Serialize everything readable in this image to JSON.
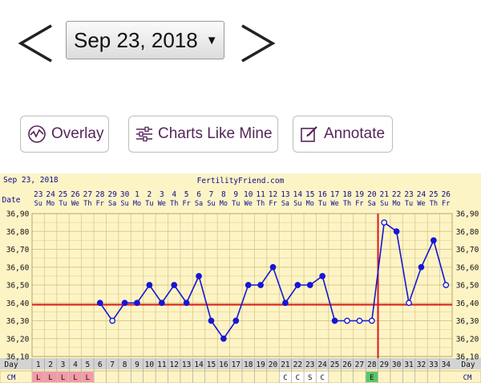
{
  "date_picker": {
    "selected": "Sep 23, 2018"
  },
  "toolbar": {
    "overlay_label": "Overlay",
    "charts_like_mine_label": "Charts Like Mine",
    "annotate_label": "Annotate"
  },
  "icons": {
    "prev": "chevron-left-icon",
    "next": "chevron-right-icon",
    "overlay": "overlay-wave-icon",
    "charts": "sliders-icon",
    "annotate": "edit-icon"
  },
  "colors": {
    "chart_bg": "#fdf4c6",
    "grid": "#d9c98a",
    "coverline": "#d81818",
    "ovulation_line": "#d81818",
    "temp_line": "#1616d6",
    "label_text": "#0a0a8a",
    "period_cell": "#f29aa8",
    "egg_cell": "#5cc46a",
    "row_bg": "#d3d3d3"
  },
  "chart_data": {
    "type": "line",
    "header_date": "Sep 23, 2018",
    "header_site": "FertilityFriend.com",
    "date_row_label": "Date",
    "day_row_label": "Day",
    "cm_row_label": "CM",
    "dates": [
      "23",
      "24",
      "25",
      "26",
      "27",
      "28",
      "29",
      "30",
      "1",
      "2",
      "3",
      "4",
      "5",
      "6",
      "7",
      "8",
      "9",
      "10",
      "11",
      "12",
      "13",
      "14",
      "15",
      "16",
      "17",
      "18",
      "19",
      "20",
      "21",
      "22",
      "23",
      "24",
      "25",
      "26"
    ],
    "weekdays": [
      "Su",
      "Mo",
      "Tu",
      "We",
      "Th",
      "Fr",
      "Sa",
      "Su",
      "Mo",
      "Tu",
      "We",
      "Th",
      "Fr",
      "Sa",
      "Su",
      "Mo",
      "Tu",
      "We",
      "Th",
      "Fr",
      "Sa",
      "Su",
      "Mo",
      "Tu",
      "We",
      "Th",
      "Fr",
      "Sa",
      "Su",
      "Mo",
      "Tu",
      "We",
      "Th",
      "Fr"
    ],
    "days": [
      "1",
      "2",
      "3",
      "4",
      "5",
      "6",
      "7",
      "8",
      "9",
      "10",
      "11",
      "12",
      "13",
      "14",
      "15",
      "16",
      "17",
      "18",
      "19",
      "20",
      "21",
      "22",
      "23",
      "24",
      "25",
      "26",
      "27",
      "28",
      "29",
      "30",
      "31",
      "32",
      "33",
      "34"
    ],
    "ylim": [
      36.1,
      36.9
    ],
    "yticks": [
      "36,90",
      "36,80",
      "36,70",
      "36,60",
      "36,50",
      "36,40",
      "36,30",
      "36,20",
      "36,10"
    ],
    "coverline": 36.39,
    "ovulation_day": 28,
    "temps": [
      {
        "day": 6,
        "value": 36.4,
        "open": false
      },
      {
        "day": 7,
        "value": 36.3,
        "open": true
      },
      {
        "day": 8,
        "value": 36.4,
        "open": false
      },
      {
        "day": 9,
        "value": 36.4,
        "open": false
      },
      {
        "day": 10,
        "value": 36.5,
        "open": false
      },
      {
        "day": 11,
        "value": 36.4,
        "open": false
      },
      {
        "day": 12,
        "value": 36.5,
        "open": false
      },
      {
        "day": 13,
        "value": 36.4,
        "open": false
      },
      {
        "day": 14,
        "value": 36.55,
        "open": false
      },
      {
        "day": 15,
        "value": 36.3,
        "open": false
      },
      {
        "day": 16,
        "value": 36.2,
        "open": false
      },
      {
        "day": 17,
        "value": 36.3,
        "open": false
      },
      {
        "day": 18,
        "value": 36.5,
        "open": false
      },
      {
        "day": 19,
        "value": 36.5,
        "open": false
      },
      {
        "day": 20,
        "value": 36.6,
        "open": false
      },
      {
        "day": 21,
        "value": 36.4,
        "open": false
      },
      {
        "day": 22,
        "value": 36.5,
        "open": false
      },
      {
        "day": 23,
        "value": 36.5,
        "open": false
      },
      {
        "day": 24,
        "value": 36.55,
        "open": false
      },
      {
        "day": 25,
        "value": 36.3,
        "open": false
      },
      {
        "day": 26,
        "value": 36.3,
        "open": true
      },
      {
        "day": 27,
        "value": 36.3,
        "open": true
      },
      {
        "day": 28,
        "value": 36.3,
        "open": true
      },
      {
        "day": 29,
        "value": 36.85,
        "open": true
      },
      {
        "day": 30,
        "value": 36.8,
        "open": false
      },
      {
        "day": 31,
        "value": 36.4,
        "open": true
      },
      {
        "day": 32,
        "value": 36.6,
        "open": false
      },
      {
        "day": 33,
        "value": 36.75,
        "open": false
      },
      {
        "day": 34,
        "value": 36.5,
        "open": true
      }
    ],
    "cm": [
      {
        "day": 1,
        "label": "L",
        "kind": "period"
      },
      {
        "day": 2,
        "label": "L",
        "kind": "period"
      },
      {
        "day": 3,
        "label": "L",
        "kind": "period"
      },
      {
        "day": 4,
        "label": "L",
        "kind": "period"
      },
      {
        "day": 5,
        "label": "L",
        "kind": "period"
      },
      {
        "day": 21,
        "label": "C",
        "kind": "cm"
      },
      {
        "day": 22,
        "label": "C",
        "kind": "cm"
      },
      {
        "day": 23,
        "label": "S",
        "kind": "cm"
      },
      {
        "day": 24,
        "label": "C",
        "kind": "cm"
      },
      {
        "day": 28,
        "label": "E",
        "kind": "egg"
      }
    ]
  }
}
